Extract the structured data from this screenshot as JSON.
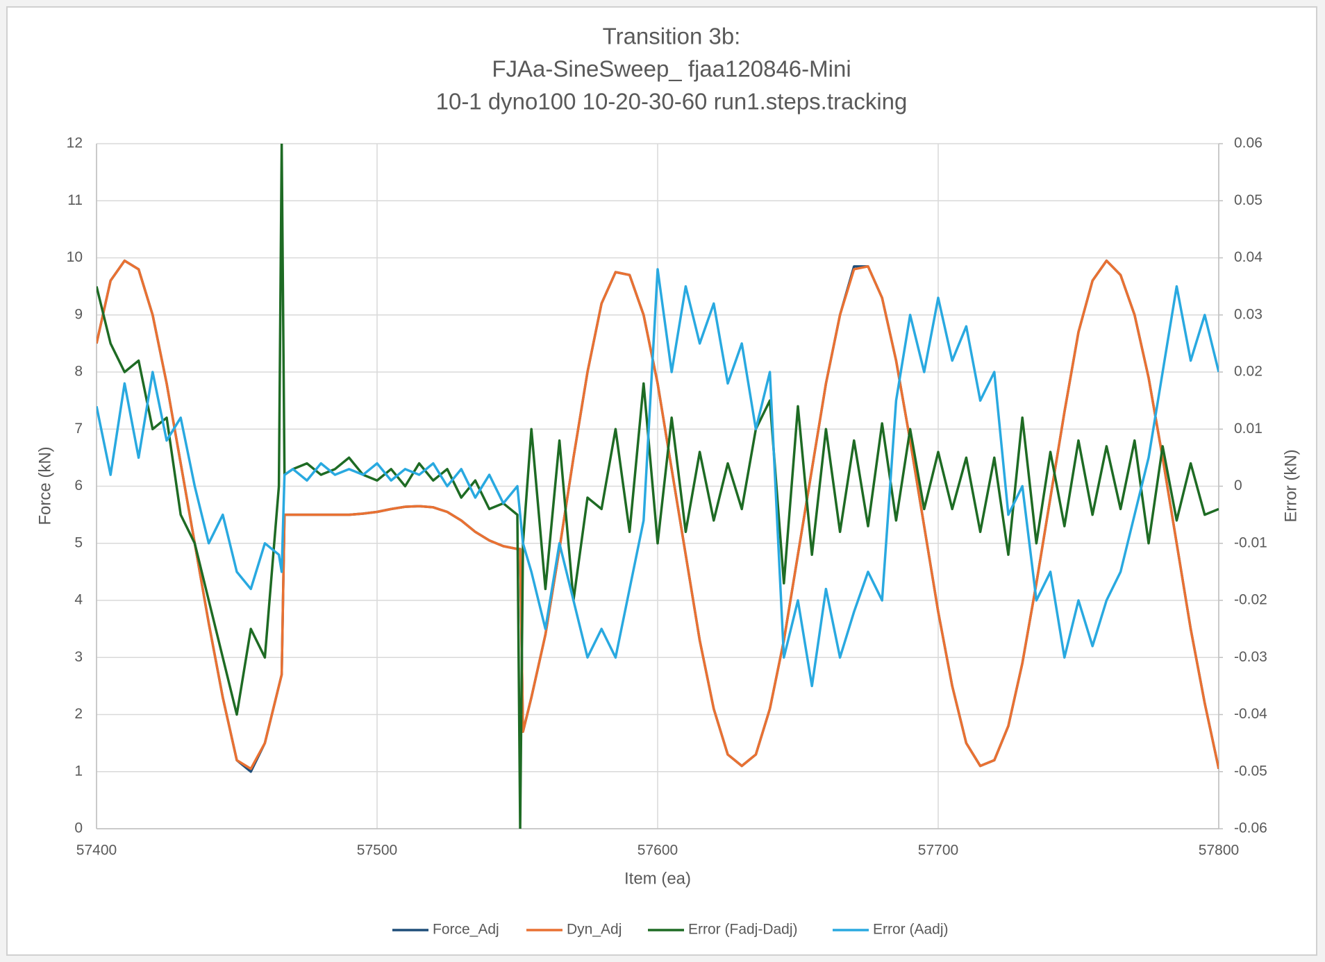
{
  "chart_data": {
    "type": "line",
    "title": [
      "Transition 3b:",
      "FJAa-SineSweep_ fjaa120846-Mini",
      "10-1 dyno100 10-20-30-60 run1.steps.tracking"
    ],
    "xlabel": "Item (ea)",
    "ylabel": "Force (kN)",
    "y2label": "Error (kN)",
    "xlim": [
      57400,
      57800
    ],
    "xticks": [
      57400,
      57500,
      57600,
      57700,
      57800
    ],
    "ylim": [
      0,
      12
    ],
    "yticks": [
      0,
      1,
      2,
      3,
      4,
      5,
      6,
      7,
      8,
      9,
      10,
      11,
      12
    ],
    "y2lim": [
      -0.06,
      0.06
    ],
    "y2ticks": [
      -0.06,
      -0.05,
      -0.04,
      -0.03,
      -0.02,
      -0.01,
      0,
      0.01,
      0.02,
      0.03,
      0.04,
      0.05,
      0.06
    ],
    "grid": true,
    "legend": "bottom",
    "x": [
      57400,
      57405,
      57410,
      57415,
      57420,
      57425,
      57430,
      57435,
      57440,
      57445,
      57450,
      57455,
      57460,
      57465,
      57466,
      57467,
      57470,
      57475,
      57480,
      57485,
      57490,
      57495,
      57500,
      57505,
      57510,
      57515,
      57520,
      57525,
      57530,
      57535,
      57540,
      57545,
      57550,
      57551,
      57552,
      57555,
      57560,
      57565,
      57570,
      57575,
      57580,
      57585,
      57590,
      57595,
      57600,
      57605,
      57610,
      57615,
      57620,
      57625,
      57630,
      57635,
      57640,
      57645,
      57650,
      57655,
      57660,
      57665,
      57670,
      57675,
      57680,
      57685,
      57690,
      57695,
      57700,
      57705,
      57710,
      57715,
      57720,
      57725,
      57730,
      57735,
      57740,
      57745,
      57750,
      57755,
      57760,
      57765,
      57770,
      57775,
      57780,
      57785,
      57790,
      57795,
      57800
    ],
    "series": [
      {
        "name": "Force_Adj",
        "color": "#1f4e79",
        "values": [
          8.5,
          9.6,
          9.95,
          9.8,
          9.0,
          7.8,
          6.4,
          5.0,
          3.6,
          2.3,
          1.2,
          1.0,
          1.5,
          2.5,
          2.7,
          5.5,
          5.5,
          5.5,
          5.5,
          5.5,
          5.5,
          5.52,
          5.55,
          5.6,
          5.64,
          5.65,
          5.63,
          5.55,
          5.4,
          5.2,
          5.05,
          4.95,
          4.9,
          4.9,
          1.7,
          2.3,
          3.4,
          4.9,
          6.5,
          8.0,
          9.2,
          9.75,
          9.7,
          9.0,
          7.8,
          6.3,
          4.8,
          3.3,
          2.1,
          1.3,
          1.1,
          1.3,
          2.1,
          3.3,
          4.8,
          6.3,
          7.8,
          9.0,
          9.85,
          9.85,
          9.3,
          8.2,
          6.8,
          5.3,
          3.8,
          2.5,
          1.5,
          1.1,
          1.2,
          1.8,
          2.9,
          4.3,
          5.8,
          7.3,
          8.7,
          9.6,
          9.95,
          9.7,
          9.0,
          7.9,
          6.5,
          5.0,
          3.5,
          2.2,
          1.05
        ]
      },
      {
        "name": "Dyn_Adj",
        "color": "#e97132",
        "values": [
          8.5,
          9.6,
          9.95,
          9.8,
          9.0,
          7.8,
          6.4,
          5.0,
          3.6,
          2.3,
          1.2,
          1.05,
          1.5,
          2.5,
          2.7,
          5.5,
          5.5,
          5.5,
          5.5,
          5.5,
          5.5,
          5.52,
          5.55,
          5.6,
          5.64,
          5.65,
          5.63,
          5.55,
          5.4,
          5.2,
          5.05,
          4.95,
          4.9,
          4.9,
          1.7,
          2.3,
          3.4,
          4.9,
          6.5,
          8.0,
          9.2,
          9.75,
          9.7,
          9.0,
          7.8,
          6.3,
          4.8,
          3.3,
          2.1,
          1.3,
          1.1,
          1.3,
          2.1,
          3.3,
          4.8,
          6.3,
          7.8,
          9.0,
          9.8,
          9.85,
          9.3,
          8.2,
          6.8,
          5.3,
          3.8,
          2.5,
          1.5,
          1.1,
          1.2,
          1.8,
          2.9,
          4.3,
          5.8,
          7.3,
          8.7,
          9.6,
          9.95,
          9.7,
          9.0,
          7.9,
          6.5,
          5.0,
          3.5,
          2.2,
          1.05
        ]
      },
      {
        "name": "Error (Fadj-Dadj)",
        "color": "#1e6b24",
        "axis": "y2",
        "values": [
          0.035,
          0.025,
          0.02,
          0.022,
          0.01,
          0.012,
          -0.005,
          -0.01,
          -0.02,
          -0.03,
          -0.04,
          -0.025,
          -0.03,
          0.0,
          0.06,
          0.002,
          0.003,
          0.004,
          0.002,
          0.003,
          0.005,
          0.002,
          0.001,
          0.003,
          0.0,
          0.004,
          0.001,
          0.003,
          -0.002,
          0.001,
          -0.004,
          -0.003,
          -0.005,
          -0.06,
          -0.01,
          0.01,
          -0.018,
          0.008,
          -0.02,
          -0.002,
          -0.004,
          0.01,
          -0.008,
          0.018,
          -0.01,
          0.012,
          -0.008,
          0.006,
          -0.006,
          0.004,
          -0.004,
          0.01,
          0.015,
          -0.017,
          0.014,
          -0.012,
          0.01,
          -0.008,
          0.008,
          -0.007,
          0.011,
          -0.006,
          0.01,
          -0.004,
          0.006,
          -0.004,
          0.005,
          -0.008,
          0.005,
          -0.012,
          0.012,
          -0.01,
          0.006,
          -0.007,
          0.008,
          -0.005,
          0.007,
          -0.004,
          0.008,
          -0.01,
          0.007,
          -0.006,
          0.004,
          -0.005,
          -0.004
        ]
      },
      {
        "name": "Error (Aadj)",
        "color": "#29a9e0",
        "axis": "y2",
        "values": [
          0.014,
          0.002,
          0.018,
          0.005,
          0.02,
          0.008,
          0.012,
          0.0,
          -0.01,
          -0.005,
          -0.015,
          -0.018,
          -0.01,
          -0.012,
          -0.015,
          0.002,
          0.003,
          0.001,
          0.004,
          0.002,
          0.003,
          0.002,
          0.004,
          0.001,
          0.003,
          0.002,
          0.004,
          0.0,
          0.003,
          -0.002,
          0.002,
          -0.003,
          0.0,
          -0.005,
          -0.01,
          -0.015,
          -0.025,
          -0.01,
          -0.02,
          -0.03,
          -0.025,
          -0.03,
          -0.018,
          -0.006,
          0.038,
          0.02,
          0.035,
          0.025,
          0.032,
          0.018,
          0.025,
          0.01,
          0.02,
          -0.03,
          -0.02,
          -0.035,
          -0.018,
          -0.03,
          -0.022,
          -0.015,
          -0.02,
          0.015,
          0.03,
          0.02,
          0.033,
          0.022,
          0.028,
          0.015,
          0.02,
          -0.005,
          0.0,
          -0.02,
          -0.015,
          -0.03,
          -0.02,
          -0.028,
          -0.02,
          -0.015,
          -0.005,
          0.005,
          0.02,
          0.035,
          0.022,
          0.03,
          0.02
        ]
      }
    ]
  }
}
